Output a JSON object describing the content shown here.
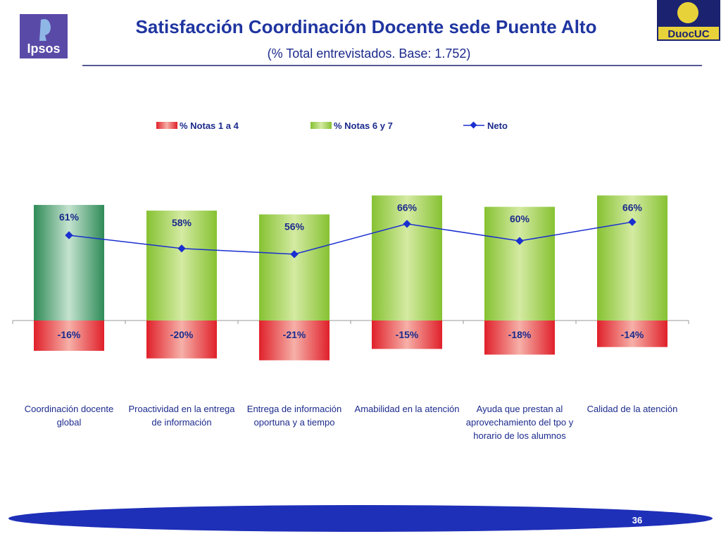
{
  "header": {
    "title": "Satisfacción Coordinación Docente sede Puente Alto",
    "subtitle": "(% Total entrevistados. Base: 1.752)",
    "logo_left": "Ipsos",
    "logo_right": "DuocUC"
  },
  "footer": {
    "page_number": "36"
  },
  "chart_data": {
    "type": "bar-line",
    "categories": [
      "Coordinación docente global",
      "Proactividad en la entrega de información",
      "Entrega de información oportuna y a tiempo",
      "Amabilidad en la atención",
      "Ayuda que prestan al aprovechamiento del tpo y horario de los alumnos",
      "Calidad de la atención"
    ],
    "series": [
      {
        "name": "% Notas 1 a 4",
        "type": "bar",
        "color": "#e8262b",
        "values": [
          -16,
          -20,
          -21,
          -15,
          -18,
          -14
        ],
        "value_labels": [
          "-16%",
          "-20%",
          "-21%",
          "-15%",
          "-18%",
          "-14%"
        ]
      },
      {
        "name": "% Notas 6 y 7",
        "type": "bar",
        "color": "#8cc63f",
        "colors": [
          "#2e8b57",
          "#8cc63f",
          "#8cc63f",
          "#8cc63f",
          "#8cc63f",
          "#8cc63f"
        ],
        "values": [
          61,
          58,
          56,
          66,
          60,
          66
        ],
        "value_labels": [
          "61%",
          "58%",
          "56%",
          "66%",
          "60%",
          "66%"
        ]
      },
      {
        "name": "Neto",
        "type": "line",
        "color": "#1a2fd0",
        "values": [
          45,
          38,
          35,
          51,
          42,
          52
        ]
      }
    ],
    "legend": "top"
  }
}
